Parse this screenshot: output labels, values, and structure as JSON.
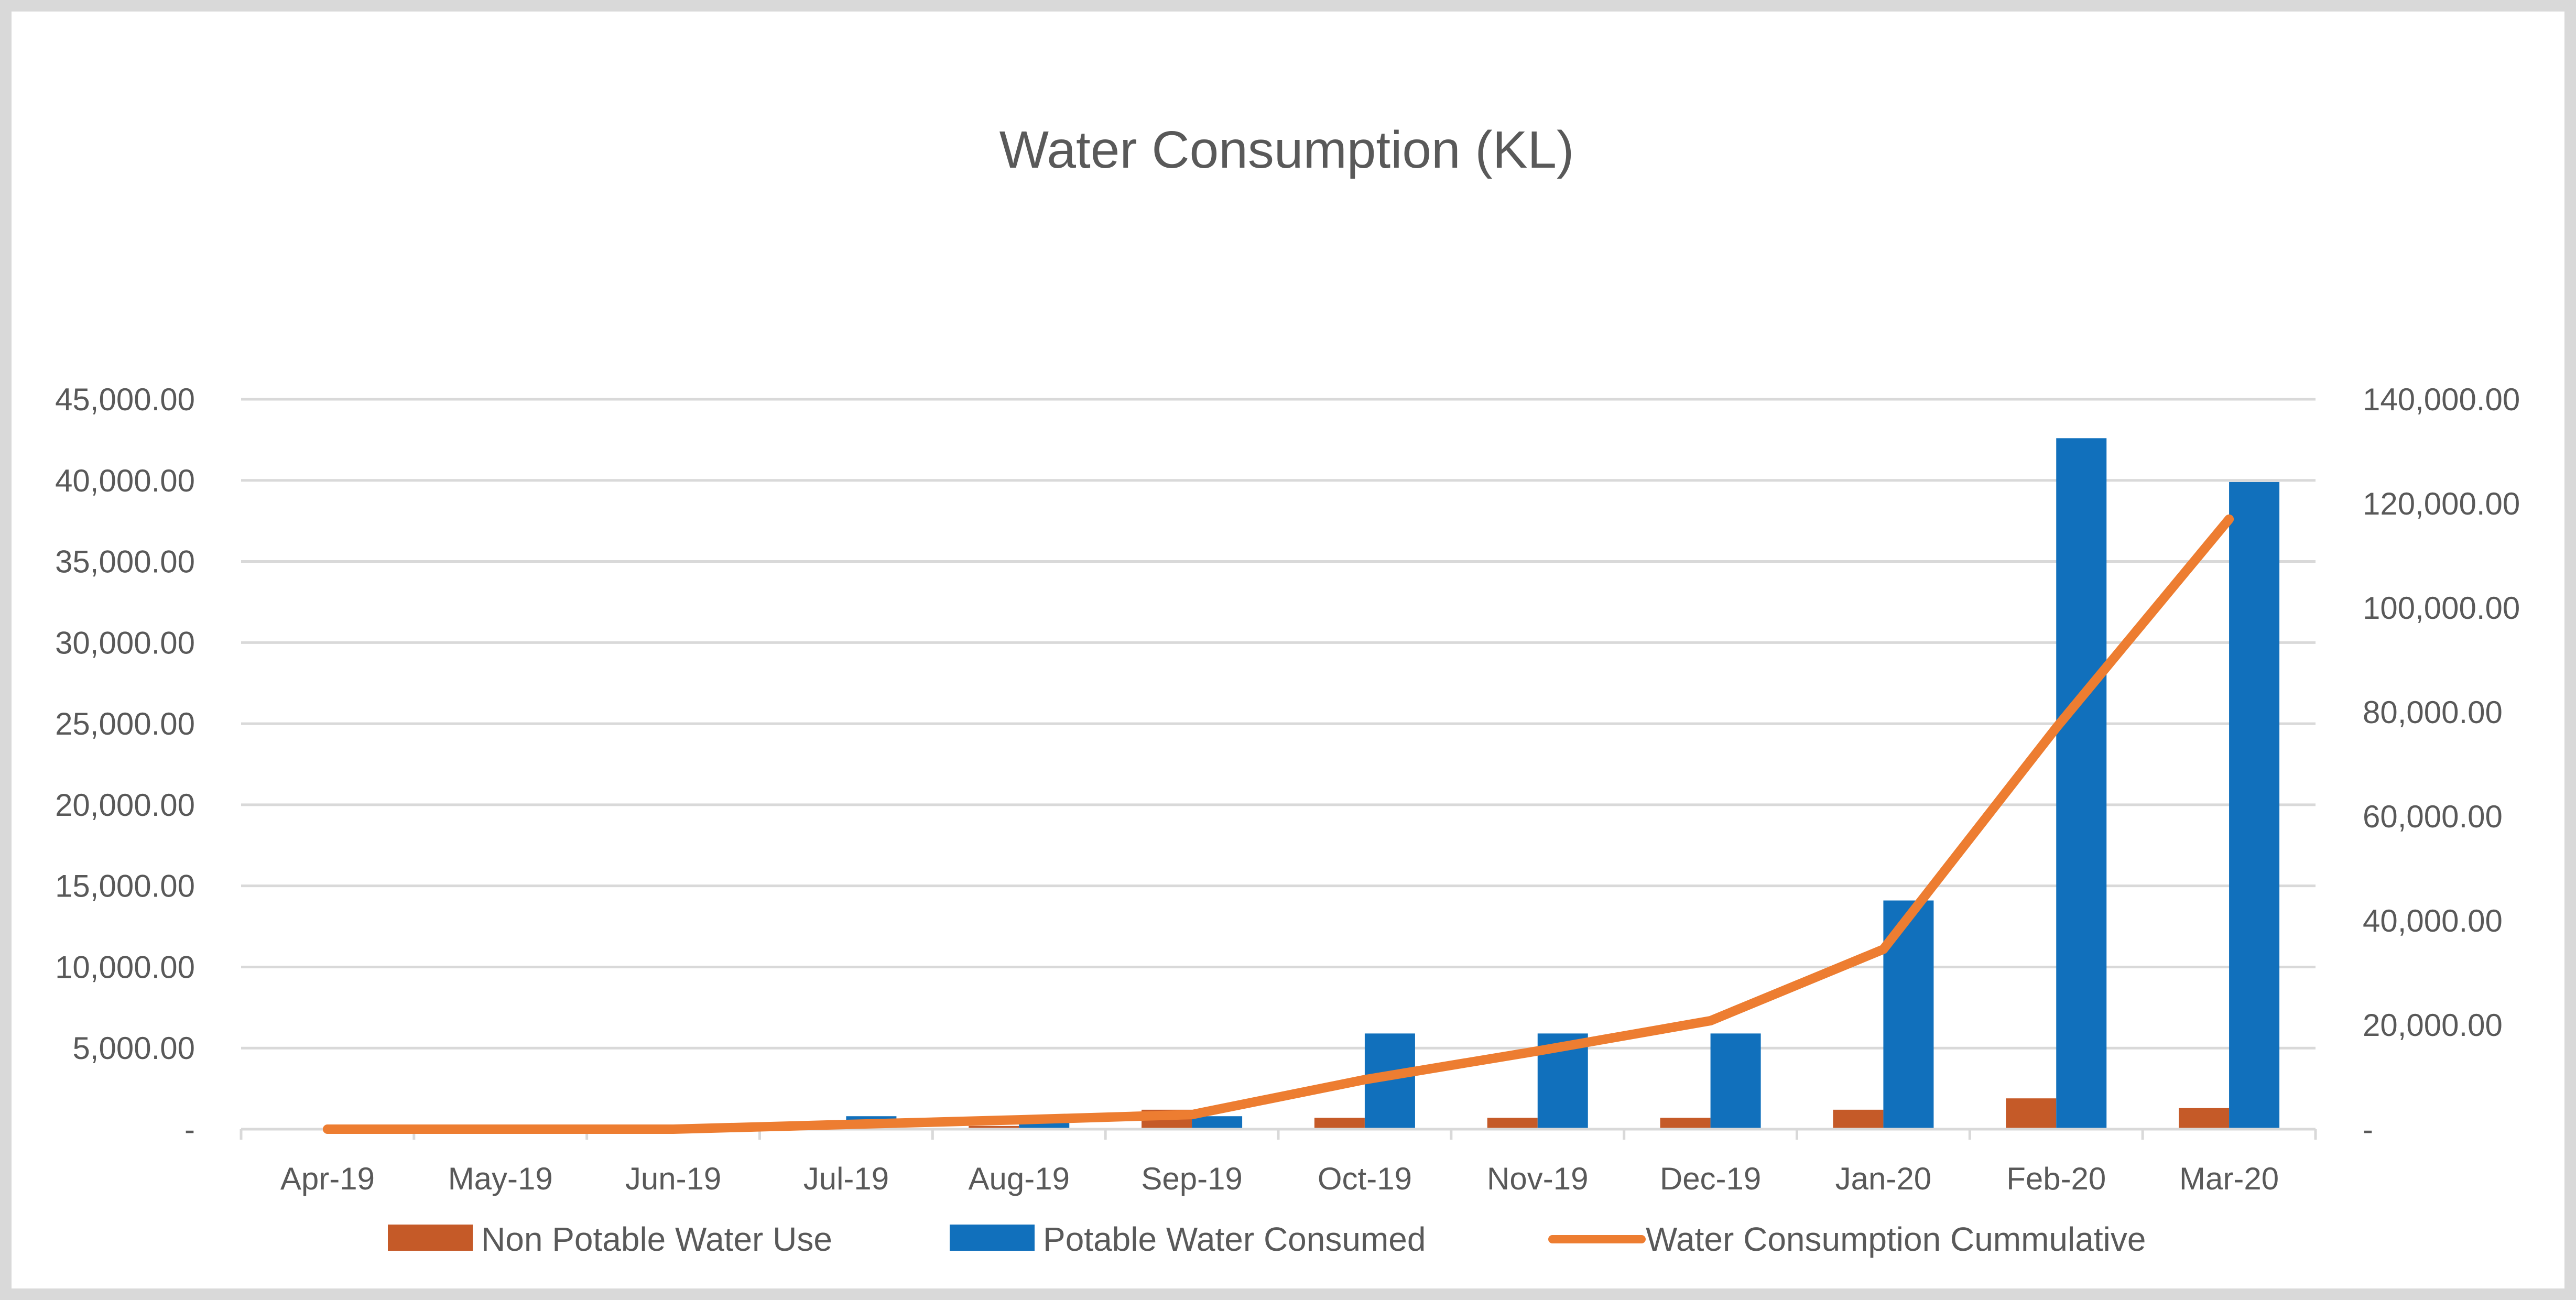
{
  "chart_data": {
    "type": "bar",
    "title": "Water Consumption (KL)",
    "categories": [
      "Apr-19",
      "May-19",
      "Jun-19",
      "Jul-19",
      "Aug-19",
      "Sep-19",
      "Oct-19",
      "Nov-19",
      "Dec-19",
      "Jan-20",
      "Feb-20",
      "Mar-20"
    ],
    "y_left": {
      "ylim": [
        0,
        45000
      ],
      "ticks": [
        0,
        5000,
        10000,
        15000,
        20000,
        25000,
        30000,
        35000,
        40000,
        45000
      ],
      "tick_labels": [
        "-",
        "5,000.00",
        "10,000.00",
        "15,000.00",
        "20,000.00",
        "25,000.00",
        "30,000.00",
        "35,000.00",
        "40,000.00",
        "45,000.00"
      ]
    },
    "y_right": {
      "ylim": [
        0,
        140000
      ],
      "ticks": [
        0,
        20000,
        40000,
        60000,
        80000,
        100000,
        120000,
        140000
      ],
      "tick_labels": [
        "-",
        "20,000.00",
        "40,000.00",
        "60,000.00",
        "80,000.00",
        "100,000.00",
        "120,000.00",
        "140,000.00"
      ]
    },
    "grid": true,
    "legend_position": "bottom",
    "series": [
      {
        "name": "Non Potable Water Use",
        "type": "bar",
        "axis": "left",
        "color": "#C55A28",
        "values": [
          0,
          0,
          0,
          0,
          200,
          1200,
          700,
          700,
          700,
          1200,
          1900,
          1300
        ]
      },
      {
        "name": "Potable Water Consumed",
        "type": "bar",
        "axis": "left",
        "color": "#1170BC",
        "values": [
          0,
          0,
          0,
          800,
          700,
          800,
          5900,
          5900,
          5900,
          14100,
          42600,
          39900
        ]
      },
      {
        "name": "Water Consumption Cummulative",
        "type": "line",
        "axis": "right",
        "color": "#ED7D31",
        "values": [
          0,
          0,
          0,
          900,
          1800,
          2800,
          9500,
          15000,
          20800,
          34500,
          77000,
          117000
        ]
      }
    ]
  }
}
